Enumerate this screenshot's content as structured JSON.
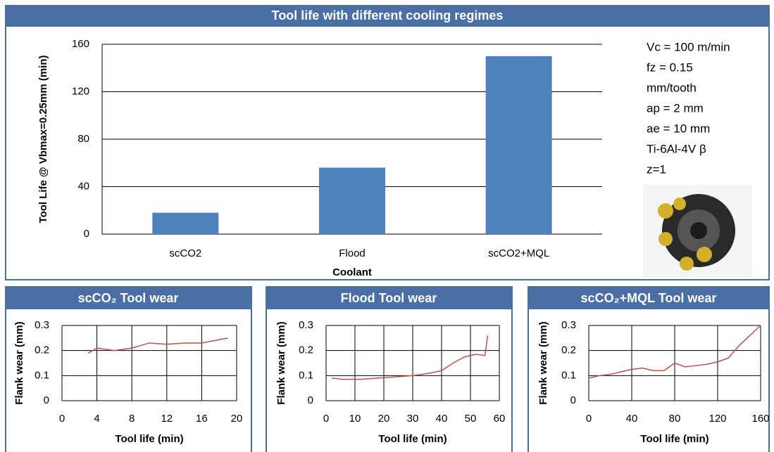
{
  "chart_data": [
    {
      "type": "bar",
      "title": "Tool life with different cooling regimes",
      "categories": [
        "scCO2",
        "Flood",
        "scCO2+MQL"
      ],
      "values": [
        18,
        56,
        150
      ],
      "color": "#4f81bd",
      "ylim": [
        0,
        160
      ],
      "yticks": [
        0,
        40,
        80,
        120,
        160
      ],
      "grid": true,
      "y_label": "Tool Life @ Vbmax=0.25mm (min)",
      "x_label": "Coolant",
      "annotations": [
        "Vc = 100 m/min",
        "fz = 0.15",
        "mm/tooth",
        "ap = 2 mm",
        "ae = 10 mm",
        "Ti-6Al-4V β",
        "z=1"
      ]
    },
    {
      "type": "line",
      "title": "scCO₂ Tool wear",
      "x_label": "Tool life (min)",
      "y_label": "Flank wear (mm)",
      "x": [
        3,
        4,
        6,
        8,
        10,
        12,
        14,
        16,
        19
      ],
      "series": [
        {
          "color": "#c0504d",
          "values": [
            0.19,
            0.21,
            0.2,
            0.21,
            0.23,
            0.225,
            0.23,
            0.23,
            0.25
          ]
        }
      ],
      "xlim": [
        0,
        20
      ],
      "xticks": [
        0,
        4,
        8,
        12,
        16,
        20
      ],
      "ylim": [
        0,
        0.3
      ],
      "yticks": [
        0,
        0.1,
        0.2,
        0.3
      ],
      "grid": true
    },
    {
      "type": "line",
      "title": "Flood Tool wear",
      "x_label": "Tool life (min)",
      "y_label": "Flank wear (mm)",
      "x": [
        2,
        6,
        12,
        18,
        24,
        30,
        36,
        40,
        44,
        48,
        52,
        55,
        56
      ],
      "series": [
        {
          "color": "#c0504d",
          "values": [
            0.09,
            0.085,
            0.085,
            0.09,
            0.095,
            0.1,
            0.11,
            0.12,
            0.15,
            0.175,
            0.185,
            0.18,
            0.26
          ]
        }
      ],
      "xlim": [
        0,
        60
      ],
      "xticks": [
        0,
        10,
        20,
        30,
        40,
        50,
        60
      ],
      "ylim": [
        0,
        0.3
      ],
      "yticks": [
        0,
        0.1,
        0.2,
        0.3
      ],
      "grid": true
    },
    {
      "type": "line",
      "title": "scCO₂+MQL Tool wear",
      "x_label": "Tool life (min)",
      "y_label": "Flank wear (mm)",
      "x": [
        0,
        10,
        20,
        30,
        40,
        50,
        60,
        70,
        80,
        90,
        100,
        110,
        120,
        130,
        140,
        150,
        160
      ],
      "series": [
        {
          "color": "#c0504d",
          "values": [
            0.09,
            0.1,
            0.105,
            0.115,
            0.125,
            0.13,
            0.12,
            0.12,
            0.15,
            0.135,
            0.14,
            0.145,
            0.155,
            0.17,
            0.22,
            0.26,
            0.3
          ]
        }
      ],
      "xlim": [
        0,
        160
      ],
      "xticks": [
        0,
        40,
        80,
        120,
        160
      ],
      "ylim": [
        0,
        0.3
      ],
      "yticks": [
        0,
        0.1,
        0.2,
        0.3
      ],
      "grid": true
    }
  ]
}
